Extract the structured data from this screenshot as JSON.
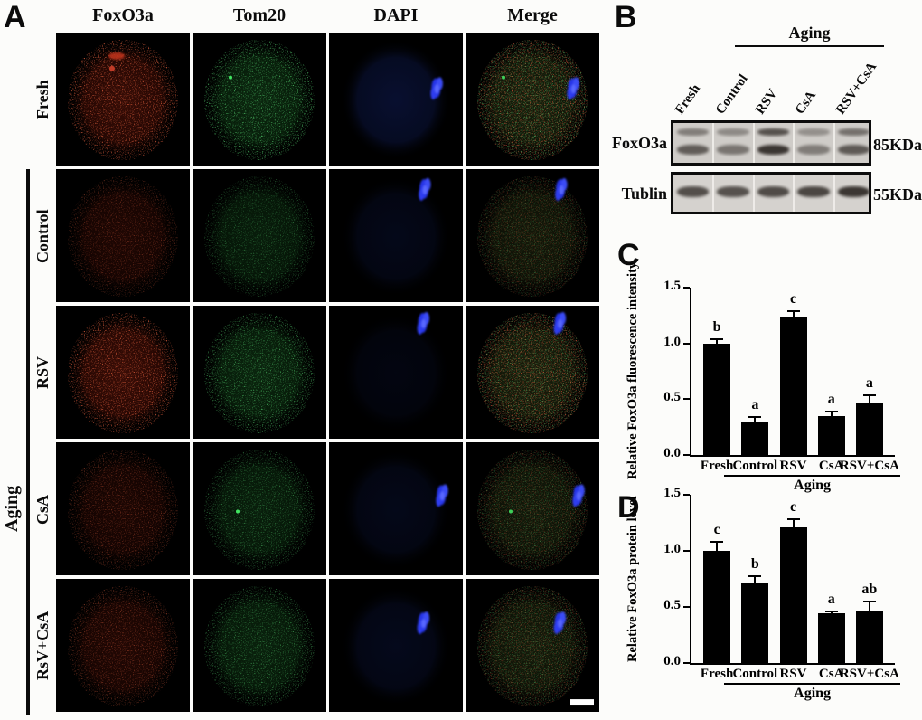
{
  "panelA": {
    "label": "A",
    "column_headers": [
      "FoxO3a",
      "Tom20",
      "DAPI",
      "Merge"
    ],
    "row_labels": [
      "Fresh",
      "Control",
      "RSV",
      "CsA",
      "RsV+CsA"
    ],
    "group_label": "Aging",
    "channel_colors": {
      "FoxO3a": "#c03020",
      "Tom20": "#2a9a3a",
      "DAPI": "#2636e8"
    }
  },
  "panelB": {
    "label": "B",
    "group_label": "Aging",
    "lane_labels": [
      "Fresh",
      "Control",
      "RSV",
      "CsA",
      "RSV+CsA"
    ],
    "blots": [
      {
        "name": "FoxO3a",
        "size": "85KDa"
      },
      {
        "name": "Tublin",
        "size": "55KDa"
      }
    ]
  },
  "chart_data": [
    {
      "type": "bar",
      "panel_label": "C",
      "title": "",
      "ylabel": "Relative FoxO3a fluorescence intensity",
      "xlabel": "",
      "categories": [
        "Fresh",
        "Control",
        "RSV",
        "CsA",
        "RSV+CsA"
      ],
      "values": [
        1.0,
        0.3,
        1.24,
        0.35,
        0.47
      ],
      "errors": [
        0.05,
        0.05,
        0.06,
        0.05,
        0.07
      ],
      "sig_letters": [
        "b",
        "a",
        "c",
        "a",
        "a"
      ],
      "ylim": [
        0,
        1.5
      ],
      "yticks": [
        "0.0",
        "0.5",
        "1.0",
        "1.5"
      ],
      "grid": false,
      "legend": false,
      "bar_color": "#000000",
      "group_label": "Aging",
      "group_categories": [
        "Control",
        "RSV",
        "CsA",
        "RSV+CsA"
      ]
    },
    {
      "type": "bar",
      "panel_label": "D",
      "title": "",
      "ylabel": "Relative FoxO3a protein level",
      "xlabel": "",
      "categories": [
        "Fresh",
        "Control",
        "RSV",
        "CsA",
        "RSV+CsA"
      ],
      "values": [
        1.0,
        0.71,
        1.21,
        0.44,
        0.47
      ],
      "errors": [
        0.09,
        0.07,
        0.08,
        0.03,
        0.09
      ],
      "sig_letters": [
        "c",
        "b",
        "c",
        "a",
        "ab"
      ],
      "ylim": [
        0,
        1.5
      ],
      "yticks": [
        "0.0",
        "0.5",
        "1.0",
        "1.5"
      ],
      "grid": false,
      "legend": false,
      "bar_color": "#000000",
      "group_label": "Aging",
      "group_categories": [
        "Control",
        "RSV",
        "CsA",
        "RSV+CsA"
      ]
    }
  ]
}
